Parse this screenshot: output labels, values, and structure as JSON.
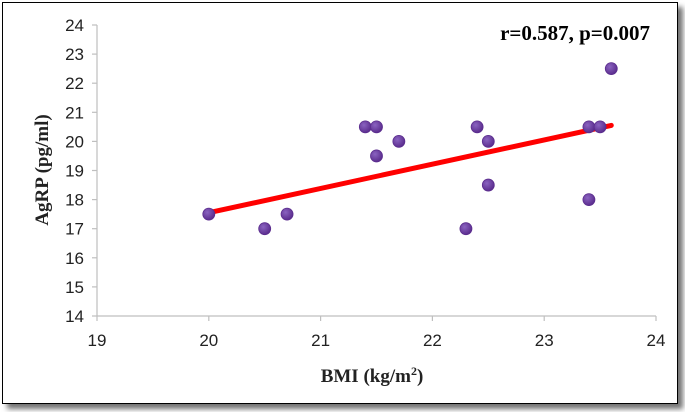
{
  "chart_data": {
    "type": "scatter",
    "annotation": "r=0.587, p=0.007",
    "xlabel": "BMI (kg/m",
    "xlabel_sup": "2",
    "xlabel_end": ")",
    "ylabel": "AgRP (pg/ml)",
    "xlim": [
      19,
      24
    ],
    "ylim": [
      14,
      24
    ],
    "x_ticks": [
      "19",
      "20",
      "21",
      "22",
      "23",
      "24"
    ],
    "y_ticks": [
      "14",
      "15",
      "16",
      "17",
      "18",
      "19",
      "20",
      "21",
      "22",
      "23",
      "24"
    ],
    "grid": false,
    "legend": "none",
    "points": [
      {
        "x": 20.0,
        "y": 17.5
      },
      {
        "x": 20.5,
        "y": 17.0
      },
      {
        "x": 20.7,
        "y": 17.5
      },
      {
        "x": 21.4,
        "y": 20.5
      },
      {
        "x": 21.5,
        "y": 20.5
      },
      {
        "x": 21.5,
        "y": 19.5
      },
      {
        "x": 21.7,
        "y": 20.0
      },
      {
        "x": 22.3,
        "y": 17.0
      },
      {
        "x": 22.4,
        "y": 20.5
      },
      {
        "x": 22.5,
        "y": 20.0
      },
      {
        "x": 22.5,
        "y": 18.5
      },
      {
        "x": 23.4,
        "y": 20.5
      },
      {
        "x": 23.5,
        "y": 20.5
      },
      {
        "x": 23.4,
        "y": 18.0
      },
      {
        "x": 23.6,
        "y": 22.5
      }
    ],
    "trendline": {
      "x": [
        20.0,
        23.6
      ],
      "y": [
        17.55,
        20.55
      ]
    },
    "colors": {
      "point": "#5b2d8e",
      "point_highlight": "#8a63c0",
      "trendline": "#ff0000",
      "axis": "#bfbfbf"
    }
  }
}
